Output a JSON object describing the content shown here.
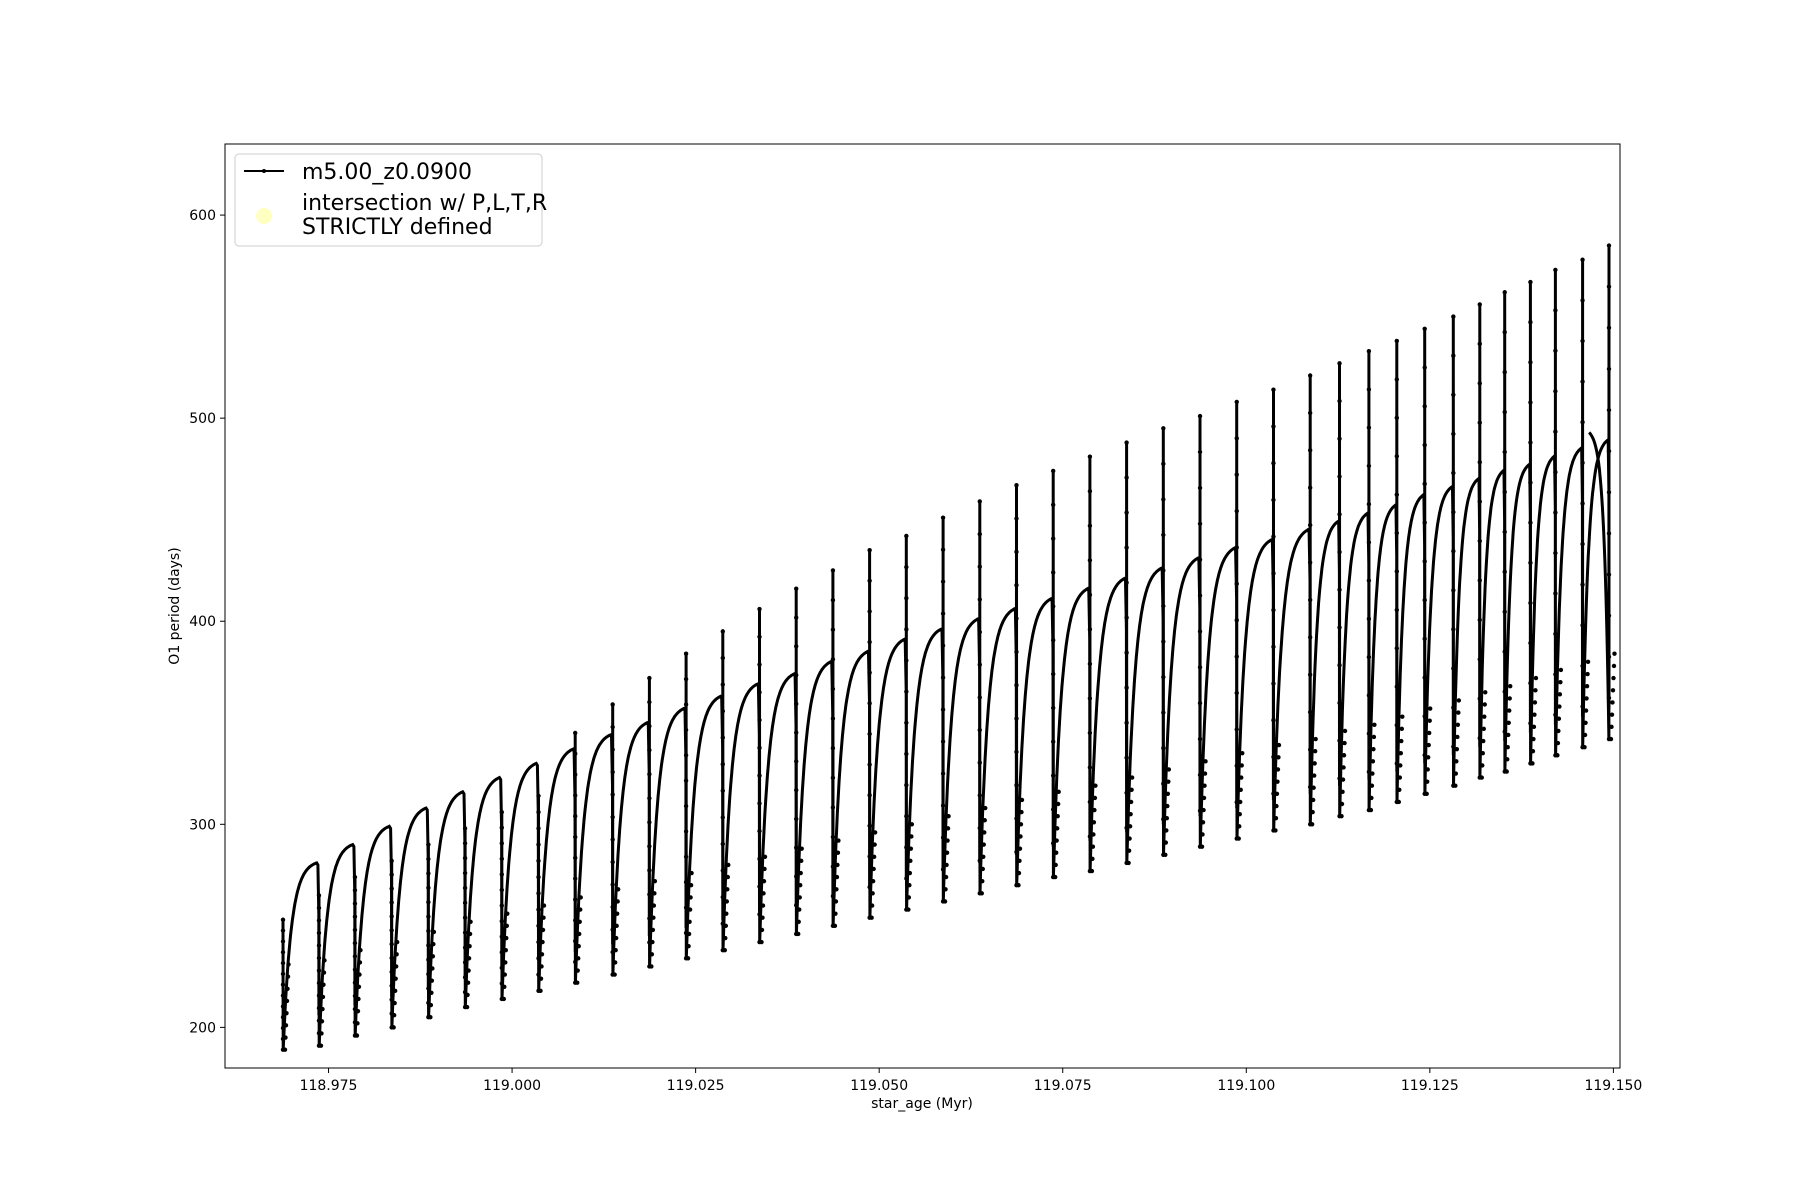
{
  "chart_data": {
    "type": "line",
    "title": "",
    "xlabel": "star_age (Myr)",
    "ylabel": "O1 period (days)",
    "xlim": [
      118.9609,
      119.1509
    ],
    "ylim": [
      180,
      635
    ],
    "xticks": [
      118.975,
      119.0,
      119.025,
      119.05,
      119.075,
      119.1,
      119.125,
      119.15
    ],
    "xtick_labels": [
      "118.975",
      "119.000",
      "119.025",
      "119.050",
      "119.075",
      "119.100",
      "119.125",
      "119.150"
    ],
    "yticks": [
      200,
      300,
      400,
      500,
      600
    ],
    "ytick_labels": [
      "200",
      "300",
      "400",
      "500",
      "600"
    ],
    "grid": false,
    "legend_position": "upper-left",
    "series": [
      {
        "name": "m5.00_z0.0900",
        "color": "#000000",
        "marker": "dot",
        "description_of_shape": "sawtooth thermal-pulse cycles",
        "cycles": [
          {
            "start": 118.9688,
            "bottom": 189,
            "top": 281,
            "spike": 253
          },
          {
            "start": 118.9737,
            "bottom": 191,
            "top": 290,
            "spike": 265
          },
          {
            "start": 118.9786,
            "bottom": 196,
            "top": 299,
            "spike": 274
          },
          {
            "start": 118.9836,
            "bottom": 200,
            "top": 308,
            "spike": 282
          },
          {
            "start": 118.9886,
            "bottom": 205,
            "top": 316,
            "spike": 290
          },
          {
            "start": 118.9936,
            "bottom": 210,
            "top": 323,
            "spike": 298
          },
          {
            "start": 118.9986,
            "bottom": 214,
            "top": 330,
            "spike": 306
          },
          {
            "start": 119.0036,
            "bottom": 218,
            "top": 337,
            "spike": 314
          },
          {
            "start": 119.0086,
            "bottom": 222,
            "top": 344,
            "spike": 345
          },
          {
            "start": 119.0137,
            "bottom": 226,
            "top": 350,
            "spike": 359
          },
          {
            "start": 119.0187,
            "bottom": 230,
            "top": 357,
            "spike": 372
          },
          {
            "start": 119.0237,
            "bottom": 234,
            "top": 363,
            "spike": 384
          },
          {
            "start": 119.0287,
            "bottom": 238,
            "top": 369,
            "spike": 395
          },
          {
            "start": 119.0337,
            "bottom": 242,
            "top": 374,
            "spike": 406
          },
          {
            "start": 119.0387,
            "bottom": 246,
            "top": 380,
            "spike": 416
          },
          {
            "start": 119.0437,
            "bottom": 250,
            "top": 385,
            "spike": 425
          },
          {
            "start": 119.0487,
            "bottom": 254,
            "top": 391,
            "spike": 435
          },
          {
            "start": 119.0537,
            "bottom": 258,
            "top": 396,
            "spike": 442
          },
          {
            "start": 119.0587,
            "bottom": 262,
            "top": 401,
            "spike": 451
          },
          {
            "start": 119.0637,
            "bottom": 266,
            "top": 406,
            "spike": 459
          },
          {
            "start": 119.0687,
            "bottom": 270,
            "top": 411,
            "spike": 467
          },
          {
            "start": 119.0737,
            "bottom": 274,
            "top": 416,
            "spike": 474
          },
          {
            "start": 119.0787,
            "bottom": 277,
            "top": 421,
            "spike": 481
          },
          {
            "start": 119.0837,
            "bottom": 281,
            "top": 426,
            "spike": 488
          },
          {
            "start": 119.0887,
            "bottom": 285,
            "top": 431,
            "spike": 495
          },
          {
            "start": 119.0937,
            "bottom": 289,
            "top": 436,
            "spike": 501
          },
          {
            "start": 119.0987,
            "bottom": 293,
            "top": 440,
            "spike": 508
          },
          {
            "start": 119.1037,
            "bottom": 297,
            "top": 445,
            "spike": 514
          },
          {
            "start": 119.1087,
            "bottom": 300,
            "top": 449,
            "spike": 521
          },
          {
            "start": 119.1127,
            "bottom": 304,
            "top": 453,
            "spike": 527
          },
          {
            "start": 119.1167,
            "bottom": 307,
            "top": 457,
            "spike": 533
          },
          {
            "start": 119.1205,
            "bottom": 311,
            "top": 462,
            "spike": 538
          },
          {
            "start": 119.1243,
            "bottom": 315,
            "top": 466,
            "spike": 544
          },
          {
            "start": 119.1282,
            "bottom": 319,
            "top": 470,
            "spike": 550
          },
          {
            "start": 119.1318,
            "bottom": 323,
            "top": 474,
            "spike": 556
          },
          {
            "start": 119.1352,
            "bottom": 326,
            "top": 477,
            "spike": 562
          },
          {
            "start": 119.1387,
            "bottom": 330,
            "top": 481,
            "spike": 567
          },
          {
            "start": 119.1421,
            "bottom": 334,
            "top": 485,
            "spike": 573
          },
          {
            "start": 119.1458,
            "bottom": 338,
            "top": 489,
            "spike": 578
          },
          {
            "start": 119.1494,
            "bottom": 342,
            "top": 493,
            "spike": 585
          }
        ],
        "end_x": 119.1465,
        "end_y": 493
      },
      {
        "name": "intersection w/ P,L,T,R STRICTLY defined",
        "color": "#ffffb3",
        "marker": "circle",
        "values": []
      }
    ],
    "legend": {
      "entries": [
        {
          "label": "m5.00_z0.0900"
        },
        {
          "label_line1": "intersection w/ P,L,T,R",
          "label_line2": "STRICTLY defined"
        }
      ]
    }
  }
}
